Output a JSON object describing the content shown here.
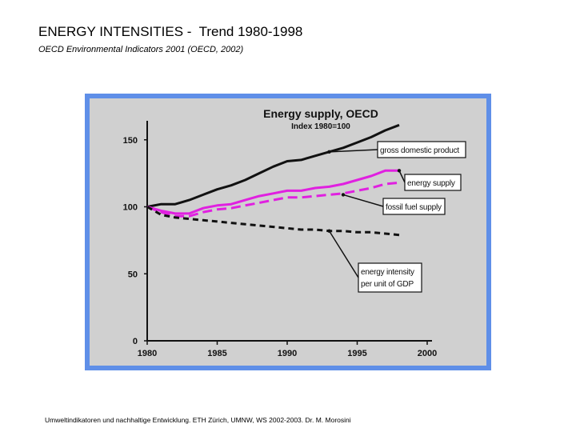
{
  "slide": {
    "title": "ENERGY INTENSITIES -  Trend 1980-1998",
    "subtitle": "OECD Environmental Indicators 2001 (OECD, 2002)",
    "footer": "Umweltindikatoren und nachhaltige Entwicklung. ETH Zürich, UMNW, WS 2002-2003. Dr. M. Morosini"
  },
  "colors": {
    "frame": "#5f8fe8",
    "plot_bg": "#d0d0d0",
    "gdp": "#111111",
    "energy": "#e020e0",
    "fossil": "#e020e0",
    "intensity": "#111111"
  },
  "chart_data": {
    "type": "line",
    "title": "Energy supply, OECD",
    "subtitle": "Index 1980=100",
    "xlabel": "",
    "ylabel": "",
    "xlim": [
      1980,
      2000
    ],
    "ylim": [
      0,
      165
    ],
    "x_ticks": [
      1980,
      1985,
      1990,
      1995,
      2000
    ],
    "y_ticks": [
      0,
      50,
      100,
      150
    ],
    "grid": false,
    "series": [
      {
        "name": "gross domestic product",
        "style": "solid",
        "color": "#111111",
        "x": [
          1980,
          1981,
          1982,
          1983,
          1984,
          1985,
          1986,
          1987,
          1988,
          1989,
          1990,
          1991,
          1992,
          1993,
          1994,
          1995,
          1996,
          1997,
          1998
        ],
        "values": [
          100,
          102,
          102,
          105,
          109,
          113,
          116,
          120,
          125,
          130,
          134,
          135,
          138,
          141,
          144,
          148,
          152,
          157,
          161
        ]
      },
      {
        "name": "energy supply",
        "style": "solid",
        "color": "#e020e0",
        "x": [
          1980,
          1981,
          1982,
          1983,
          1984,
          1985,
          1986,
          1987,
          1988,
          1989,
          1990,
          1991,
          1992,
          1993,
          1994,
          1995,
          1996,
          1997,
          1998
        ],
        "values": [
          100,
          97,
          95,
          95,
          99,
          101,
          102,
          105,
          108,
          110,
          112,
          112,
          114,
          115,
          117,
          120,
          123,
          127,
          127
        ]
      },
      {
        "name": "fossil fuel supply",
        "style": "dashed",
        "color": "#e020e0",
        "x": [
          1980,
          1981,
          1982,
          1983,
          1984,
          1985,
          1986,
          1987,
          1988,
          1989,
          1990,
          1991,
          1992,
          1993,
          1994,
          1995,
          1996,
          1997,
          1998
        ],
        "values": [
          100,
          96,
          93,
          93,
          96,
          98,
          99,
          101,
          103,
          105,
          107,
          107,
          108,
          109,
          110,
          112,
          114,
          117,
          118
        ]
      },
      {
        "name": "energy intensity per unit of GDP",
        "style": "dashed",
        "color": "#111111",
        "x": [
          1980,
          1981,
          1982,
          1983,
          1984,
          1985,
          1986,
          1987,
          1988,
          1989,
          1990,
          1991,
          1992,
          1993,
          1994,
          1995,
          1996,
          1997,
          1998
        ],
        "values": [
          100,
          94,
          92,
          91,
          90,
          89,
          88,
          87,
          86,
          85,
          84,
          83,
          83,
          82,
          82,
          81,
          81,
          80,
          79
        ]
      }
    ],
    "annotations": [
      {
        "series": 0,
        "lines": [
          "gross domestic product"
        ],
        "x": 1993,
        "y": 141
      },
      {
        "series": 1,
        "lines": [
          "energy supply"
        ],
        "x": 1998,
        "y": 127
      },
      {
        "series": 2,
        "lines": [
          "fossil fuel supply"
        ],
        "x": 1994,
        "y": 109
      },
      {
        "series": 3,
        "lines": [
          "energy intensity",
          "per unit of GDP"
        ],
        "x": 1993,
        "y": 82
      }
    ]
  }
}
